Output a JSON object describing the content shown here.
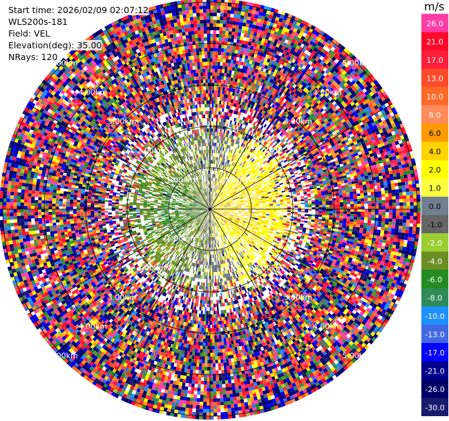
{
  "info": {
    "start_time": "Start time: 2026/02/09 02:07:12",
    "instrument": "WLS200s-181",
    "field": "Field: VEL",
    "elevation": "Elevation(deg): 35.00",
    "nrays": "NRays: 120"
  },
  "colorbar": {
    "unit": "m/s",
    "labels": [
      "26.0",
      "21.0",
      "17.0",
      "13.0",
      "10.0",
      "8.0",
      "6.0",
      "4.0",
      "2.0",
      "1.0",
      "0.0",
      "-1.0",
      "-2.0",
      "-4.0",
      "-6.0",
      "-8.0",
      "-10.0",
      "-13.0",
      "-17.0",
      "-21.0",
      "-26.0",
      "-30.0"
    ],
    "colors": [
      "#ff3ea6",
      "#ff0a2a",
      "#ff1f3a",
      "#ff4a2a",
      "#ff6a2a",
      "#ff8a5a",
      "#ff9a00",
      "#ffd400",
      "#ffff00",
      "#ffff40",
      "#708090",
      "#666666",
      "#9acd32",
      "#6b8e23",
      "#228b22",
      "#2e8b57",
      "#1e90ff",
      "#4169e1",
      "#0000ff",
      "#00008b",
      "#000066",
      "#191970"
    ]
  },
  "chart_data": {
    "type": "ppi",
    "field": "VEL",
    "unit": "m/s",
    "elevation_deg": 35.0,
    "nrays": 120,
    "range_rings_km": [
      1.0,
      2.0,
      3.0,
      4.0,
      5.0
    ],
    "range_ring_labels": [
      "1.00km",
      "2.00km",
      "3.00km",
      "4.00km",
      "5.00km"
    ],
    "color_levels": [
      -30.0,
      -26.0,
      -21.0,
      -17.0,
      -13.0,
      -10.0,
      -8.0,
      -6.0,
      -4.0,
      -2.0,
      -1.0,
      0.0,
      1.0,
      2.0,
      4.0,
      6.0,
      8.0,
      10.0,
      13.0,
      17.0,
      21.0,
      26.0
    ],
    "near_field_pattern": "negative (blue/green) to west, positive (orange/yellow) to east; noisy beyond ~2 km"
  }
}
